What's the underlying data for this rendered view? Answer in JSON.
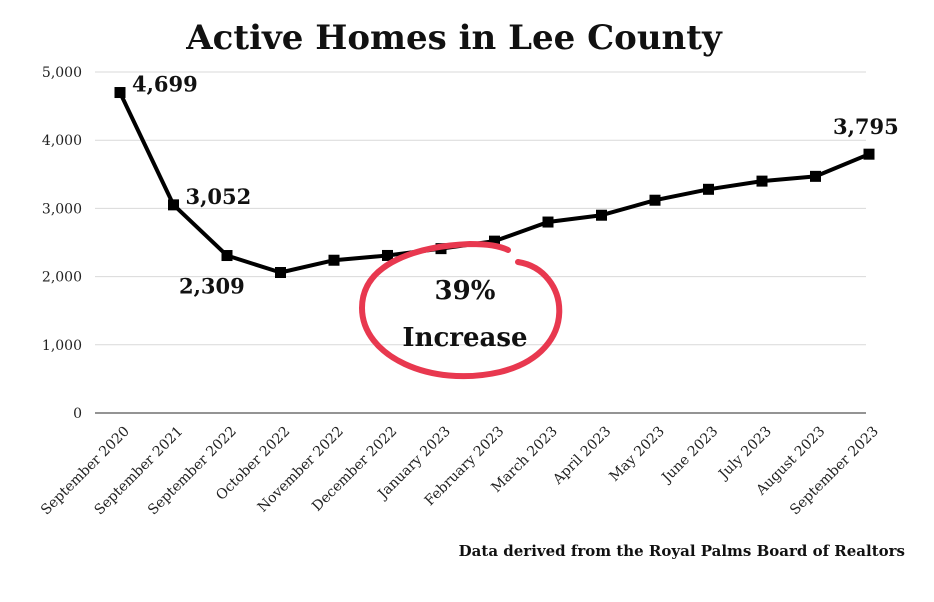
{
  "chart_data": {
    "type": "line",
    "title": "Active Homes in Lee County",
    "xlabel": "",
    "ylabel": "",
    "ylim": [
      0,
      5000
    ],
    "yticks": [
      "5,000",
      "4,000",
      "3,000",
      "2,000",
      "1,000",
      "0"
    ],
    "ytick_values": [
      5000,
      4000,
      3000,
      2000,
      1000,
      0
    ],
    "grid": true,
    "categories": [
      "September 2020",
      "September 2021",
      "September 2022",
      "October 2022",
      "November 2022",
      "December 2022",
      "January 2023",
      "February 2023",
      "March 2023",
      "April 2023",
      "May 2023",
      "June 2023",
      "July 2023",
      "August 2023",
      "September 2023"
    ],
    "series": [
      {
        "values": [
          4699,
          3052,
          2309,
          2060,
          2240,
          2310,
          2410,
          2520,
          2800,
          2900,
          3120,
          3280,
          3400,
          3470,
          3795
        ],
        "color": "#000000"
      }
    ],
    "data_labels": [
      {
        "index": 0,
        "text": "4,699",
        "position": "right"
      },
      {
        "index": 1,
        "text": "3,052",
        "position": "right"
      },
      {
        "index": 2,
        "text": "2,309",
        "position": "below"
      },
      {
        "index": 14,
        "text": "3,795",
        "position": "above"
      }
    ],
    "annotation": {
      "line1": "39%",
      "line2": "Increase",
      "circle_color": "#e8384f"
    },
    "source": "Data derived from the Royal Palms Board of Realtors"
  }
}
